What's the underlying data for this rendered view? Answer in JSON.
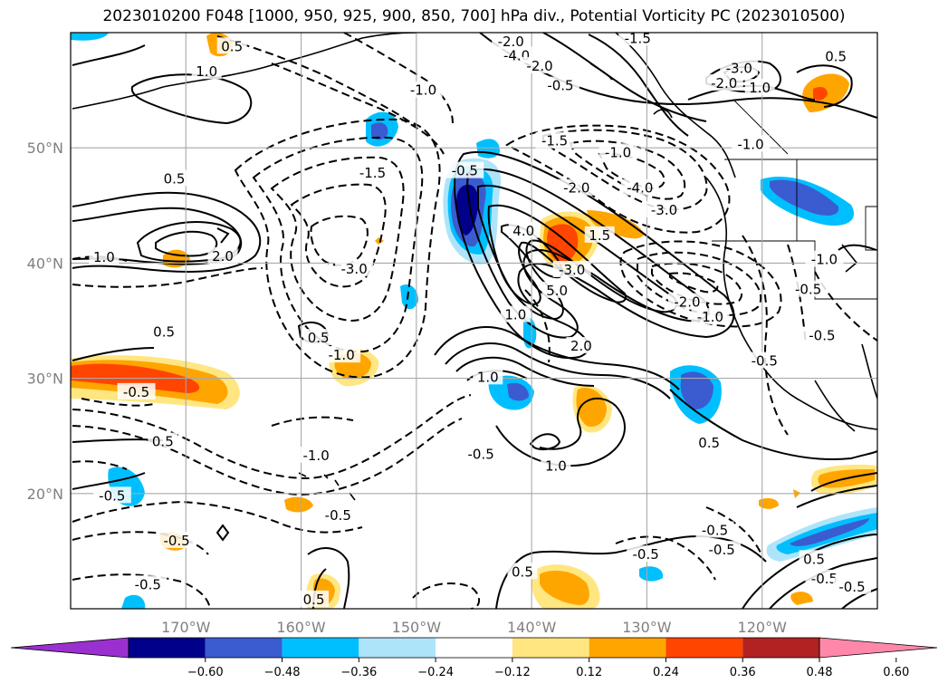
{
  "title": "2023010200 F048 [1000, 950, 925, 900, 850, 700] hPa div., Potential Vorticity PC (2023010500)",
  "map": {
    "lon_range": [
      -180,
      -110
    ],
    "lat_range": [
      10,
      60
    ],
    "gridlines": true,
    "lat_ticks": [
      {
        "value": 20,
        "label": "20°N"
      },
      {
        "value": 30,
        "label": "30°N"
      },
      {
        "value": 40,
        "label": "40°N"
      },
      {
        "value": 50,
        "label": "50°N"
      }
    ],
    "lon_ticks": [
      {
        "value": -170,
        "label": "170°W"
      },
      {
        "value": -160,
        "label": "160°W"
      },
      {
        "value": -150,
        "label": "150°W"
      },
      {
        "value": -140,
        "label": "140°W"
      },
      {
        "value": -130,
        "label": "130°W"
      },
      {
        "value": -120,
        "label": "120°W"
      }
    ]
  },
  "colorbar": {
    "ticks": [
      "−0.60",
      "−0.48",
      "−0.36",
      "−0.24",
      "−0.12",
      "0.12",
      "0.24",
      "0.36",
      "0.48",
      "0.60"
    ],
    "colors": [
      "#9b30d0",
      "#00008b",
      "#3b5bd0",
      "#00bfff",
      "#aee4fa",
      "#ffffff",
      "#ffe680",
      "#ffa500",
      "#ff4500",
      "#b22222",
      "#ff88aa"
    ]
  },
  "contour_labels": [
    {
      "text": "0.5",
      "lon": -171,
      "lat": 47.3
    },
    {
      "text": "1.0",
      "lon": -177.1,
      "lat": 40.5
    },
    {
      "text": "2.0",
      "lon": -166.8,
      "lat": 40.6
    },
    {
      "text": "0.5",
      "lon": -166,
      "lat": 58.8
    },
    {
      "text": "1.0",
      "lon": -168.2,
      "lat": 56.6
    },
    {
      "text": "-1.5",
      "lon": -153.8,
      "lat": 47.8
    },
    {
      "text": "-1.0",
      "lon": -149.4,
      "lat": 55
    },
    {
      "text": "-3.0",
      "lon": -155.4,
      "lat": 39.5
    },
    {
      "text": "-0.5",
      "lon": -145.8,
      "lat": 48
    },
    {
      "text": "0.5",
      "lon": -158.5,
      "lat": 33.5
    },
    {
      "text": "-1.0",
      "lon": -156.5,
      "lat": 32
    },
    {
      "text": "0.5",
      "lon": -171.9,
      "lat": 34
    },
    {
      "text": "-0.5",
      "lon": -174.3,
      "lat": 28.8
    },
    {
      "text": "0.5",
      "lon": -172,
      "lat": 24.5
    },
    {
      "text": "-1.0",
      "lon": -158.7,
      "lat": 23.3
    },
    {
      "text": "-0.5",
      "lon": -156.8,
      "lat": 18.1
    },
    {
      "text": "-0.5",
      "lon": -170.8,
      "lat": 15.9
    },
    {
      "text": "-0.5",
      "lon": -176.4,
      "lat": 19.8
    },
    {
      "text": "-0.5",
      "lon": -173.3,
      "lat": 12.1
    },
    {
      "text": "0.5",
      "lon": -158.9,
      "lat": 10.8
    },
    {
      "text": "-2.0",
      "lon": -141.8,
      "lat": 59.2
    },
    {
      "text": "-4.0",
      "lon": -141.3,
      "lat": 58
    },
    {
      "text": "-2.0",
      "lon": -139.3,
      "lat": 57.1
    },
    {
      "text": "-0.5",
      "lon": -137.5,
      "lat": 55.4
    },
    {
      "text": "-1.5",
      "lon": -130.8,
      "lat": 59.5
    },
    {
      "text": "-3.0",
      "lon": -122,
      "lat": 56.9
    },
    {
      "text": "-2.0",
      "lon": -123.3,
      "lat": 55.6
    },
    {
      "text": "1.0",
      "lon": -120.2,
      "lat": 55.2
    },
    {
      "text": "0.5",
      "lon": -113.6,
      "lat": 57.9
    },
    {
      "text": "-1.5",
      "lon": -138,
      "lat": 50.6
    },
    {
      "text": "-1.0",
      "lon": -132.5,
      "lat": 49.6
    },
    {
      "text": "-1.0",
      "lon": -121,
      "lat": 50.3
    },
    {
      "text": "-2.0",
      "lon": -136.1,
      "lat": 46.5
    },
    {
      "text": "-4.0",
      "lon": -130.6,
      "lat": 46.5
    },
    {
      "text": "-3.0",
      "lon": -128.5,
      "lat": 44.6
    },
    {
      "text": "4.0",
      "lon": -140.7,
      "lat": 42.8
    },
    {
      "text": "1.5",
      "lon": -134.1,
      "lat": 42.4
    },
    {
      "text": "-3.0",
      "lon": -136.5,
      "lat": 39.4
    },
    {
      "text": "5.0",
      "lon": -137.8,
      "lat": 37.6
    },
    {
      "text": "1.0",
      "lon": -141.4,
      "lat": 35.5
    },
    {
      "text": "2.0",
      "lon": -135.7,
      "lat": 32.8
    },
    {
      "text": "1.0",
      "lon": -143.8,
      "lat": 30.1
    },
    {
      "text": "-0.5",
      "lon": -144.4,
      "lat": 23.4
    },
    {
      "text": "1.0",
      "lon": -137.9,
      "lat": 22.4
    },
    {
      "text": "-2.0",
      "lon": -126.5,
      "lat": 36.6
    },
    {
      "text": "-1.0",
      "lon": -124.5,
      "lat": 35.3
    },
    {
      "text": "-0.5",
      "lon": -116,
      "lat": 37.7
    },
    {
      "text": "-0.5",
      "lon": -114.8,
      "lat": 33.7
    },
    {
      "text": "-0.5",
      "lon": -119.8,
      "lat": 31.5
    },
    {
      "text": "-1.0",
      "lon": -114.6,
      "lat": 40.3
    },
    {
      "text": "0.5",
      "lon": -124.6,
      "lat": 24.4
    },
    {
      "text": "-0.5",
      "lon": -124.1,
      "lat": 16.8
    },
    {
      "text": "-0.5",
      "lon": -123.5,
      "lat": 15.1
    },
    {
      "text": "0.5",
      "lon": -115.5,
      "lat": 14.3
    },
    {
      "text": "-0.5",
      "lon": -114.6,
      "lat": 12.6
    },
    {
      "text": "-0.5",
      "lon": -112.2,
      "lat": 11.9
    },
    {
      "text": "-0.5",
      "lon": -130.1,
      "lat": 14.7
    },
    {
      "text": "0.5",
      "lon": -140.8,
      "lat": 13.2
    }
  ]
}
